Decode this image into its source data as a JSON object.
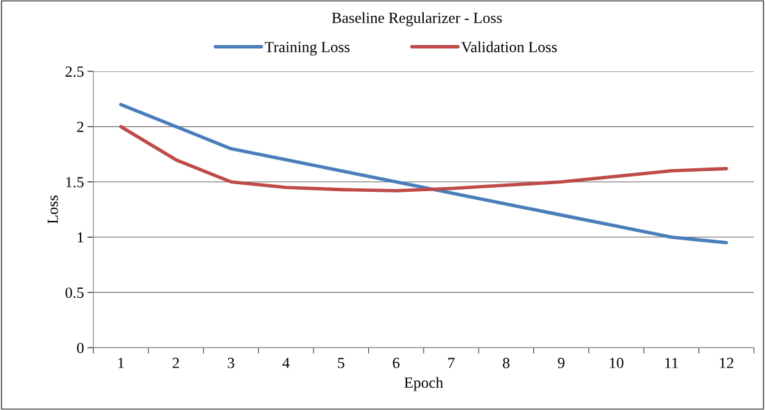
{
  "chart_data": {
    "type": "line",
    "title": "Baseline Regularizer - Loss",
    "xlabel": "Epoch",
    "ylabel": "Loss",
    "categories": [
      "1",
      "2",
      "3",
      "4",
      "5",
      "6",
      "7",
      "8",
      "9",
      "10",
      "11",
      "12"
    ],
    "series": [
      {
        "name": "Training Loss",
        "color": "#4a7ebb",
        "values": [
          2.2,
          2.0,
          1.8,
          1.7,
          1.6,
          1.5,
          1.4,
          1.3,
          1.2,
          1.1,
          1.0,
          0.95
        ]
      },
      {
        "name": "Validation Loss",
        "color": "#be4b48",
        "values": [
          2.0,
          1.7,
          1.5,
          1.45,
          1.43,
          1.42,
          1.44,
          1.47,
          1.5,
          1.55,
          1.6,
          1.62
        ]
      }
    ],
    "ylim": [
      0,
      2.5
    ],
    "yticks": [
      0,
      0.5,
      1,
      1.5,
      2,
      2.5
    ],
    "grid": "y",
    "legend": "top",
    "marker": "none",
    "line_style": "solid"
  }
}
